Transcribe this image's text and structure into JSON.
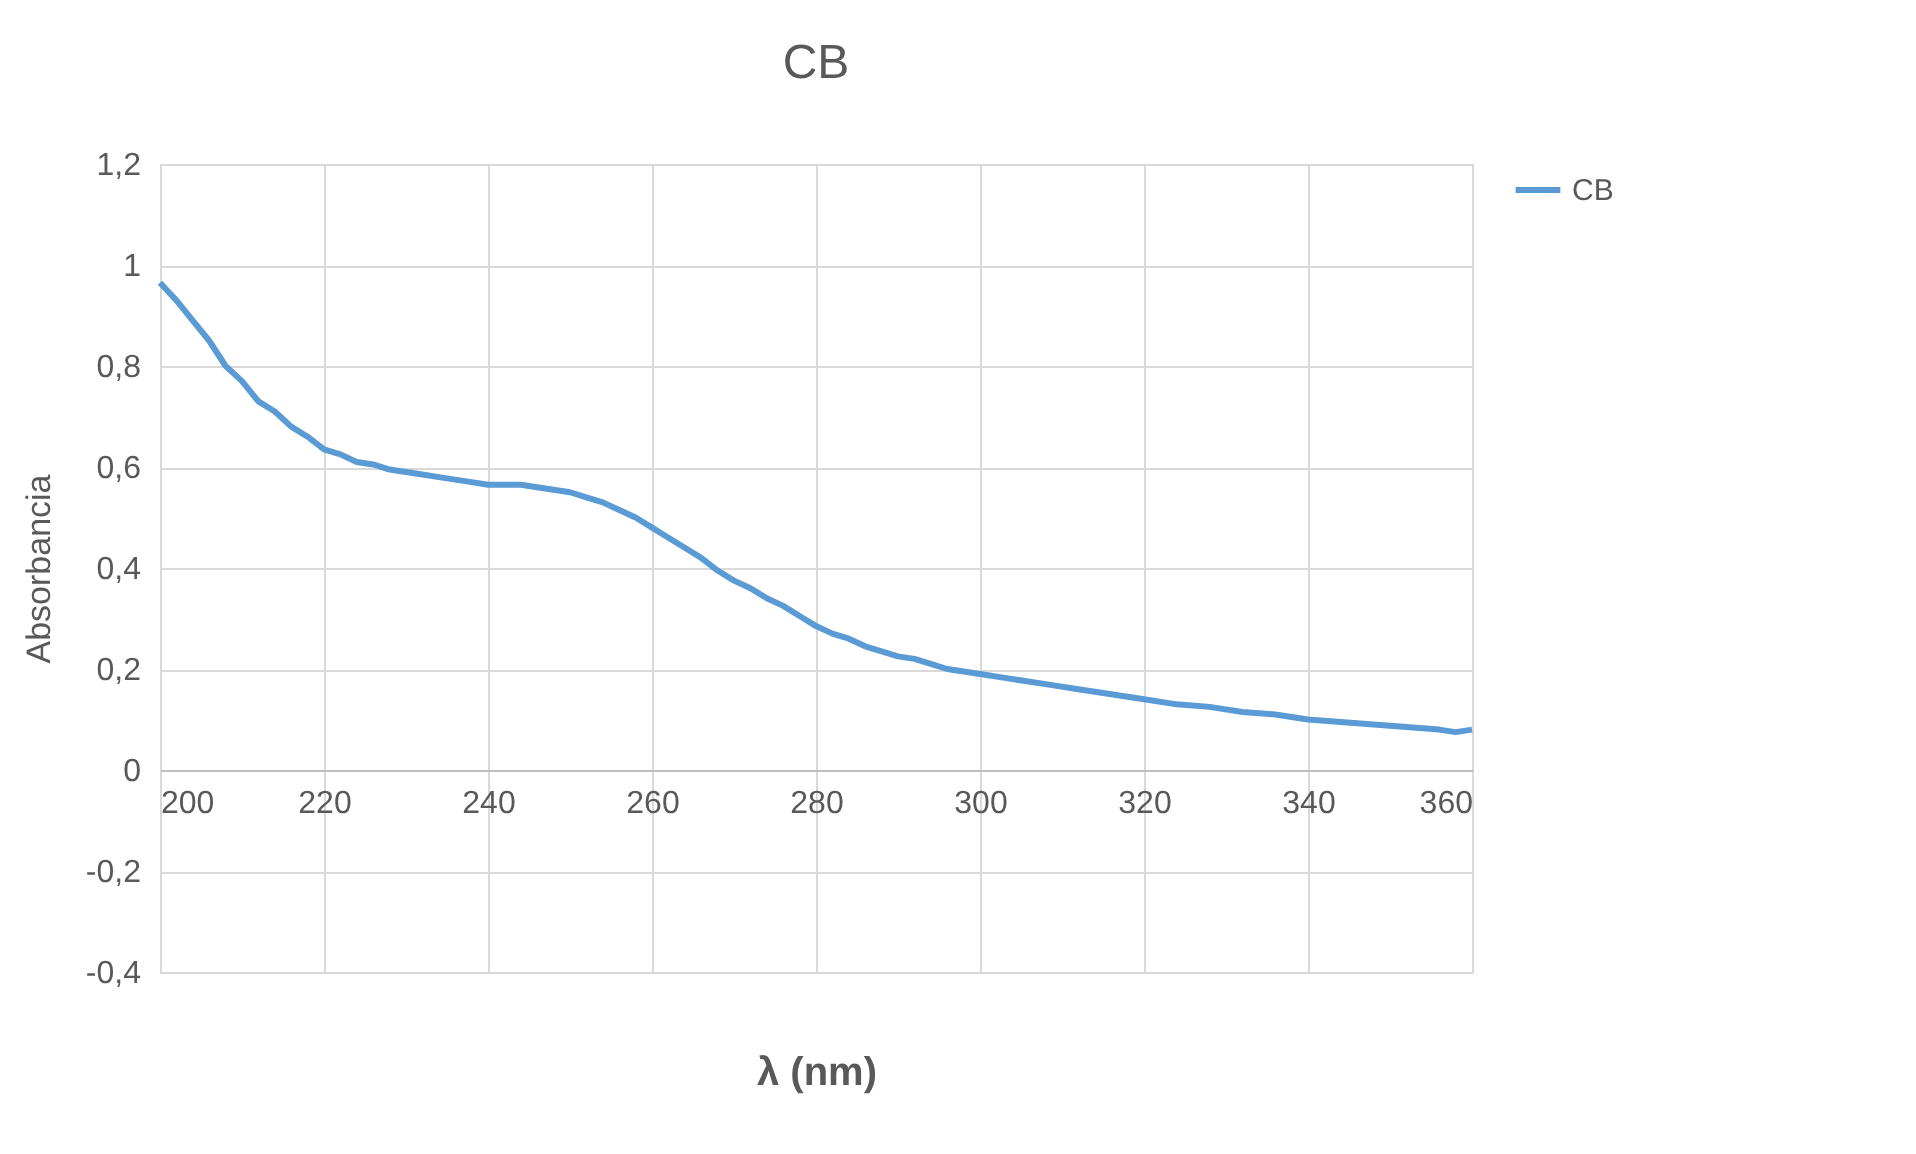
{
  "chart_data": {
    "type": "line",
    "title": "CB",
    "xlabel": "λ (nm)",
    "ylabel": "Absorbancia",
    "x": [
      200,
      202,
      204,
      206,
      208,
      210,
      212,
      214,
      216,
      218,
      220,
      222,
      224,
      226,
      228,
      230,
      232,
      234,
      236,
      238,
      240,
      242,
      244,
      246,
      248,
      250,
      252,
      254,
      256,
      258,
      260,
      262,
      264,
      266,
      268,
      270,
      272,
      274,
      276,
      278,
      280,
      282,
      284,
      286,
      288,
      290,
      292,
      294,
      296,
      298,
      300,
      304,
      308,
      312,
      316,
      320,
      324,
      328,
      332,
      336,
      340,
      344,
      348,
      352,
      356,
      358,
      360
    ],
    "series": [
      {
        "name": "CB",
        "color": "#5b9bd5",
        "values": [
          0.965,
          0.93,
          0.89,
          0.85,
          0.8,
          0.77,
          0.73,
          0.71,
          0.68,
          0.66,
          0.635,
          0.625,
          0.61,
          0.605,
          0.595,
          0.59,
          0.585,
          0.58,
          0.575,
          0.57,
          0.565,
          0.565,
          0.565,
          0.56,
          0.555,
          0.55,
          0.54,
          0.53,
          0.515,
          0.5,
          0.48,
          0.46,
          0.44,
          0.42,
          0.395,
          0.375,
          0.36,
          0.34,
          0.325,
          0.305,
          0.285,
          0.27,
          0.26,
          0.245,
          0.235,
          0.225,
          0.22,
          0.21,
          0.2,
          0.195,
          0.19,
          0.18,
          0.17,
          0.16,
          0.15,
          0.14,
          0.13,
          0.125,
          0.115,
          0.11,
          0.1,
          0.095,
          0.09,
          0.085,
          0.08,
          0.075,
          0.08
        ]
      }
    ],
    "xlim": [
      200,
      360
    ],
    "xticks": [
      200,
      220,
      240,
      260,
      280,
      300,
      320,
      340,
      360
    ],
    "ylim": [
      -0.4,
      1.2
    ],
    "yticks": [
      {
        "value": -0.4,
        "label": "-0,4"
      },
      {
        "value": -0.2,
        "label": "-0,2"
      },
      0,
      {
        "value": 0.2,
        "label": "0,2"
      },
      {
        "value": 0.4,
        "label": "0,4"
      },
      {
        "value": 0.6,
        "label": "0,6"
      },
      {
        "value": 0.8,
        "label": "0,8"
      },
      1,
      {
        "value": 1.2,
        "label": "1,2"
      }
    ],
    "grid": true,
    "legend": "right",
    "marker": "none",
    "line_style": "solid"
  }
}
